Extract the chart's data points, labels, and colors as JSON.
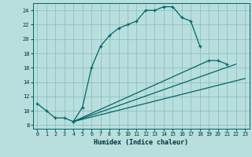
{
  "xlabel": "Humidex (Indice chaleur)",
  "background_color": "#b8dede",
  "grid_color": "#88bbbb",
  "line_color": "#006666",
  "xlim": [
    -0.5,
    23.5
  ],
  "ylim": [
    7.5,
    25
  ],
  "xticks": [
    0,
    1,
    2,
    3,
    4,
    5,
    6,
    7,
    8,
    9,
    10,
    11,
    12,
    13,
    14,
    15,
    16,
    17,
    18,
    19,
    20,
    21,
    22,
    23
  ],
  "yticks": [
    8,
    10,
    12,
    14,
    16,
    18,
    20,
    22,
    24
  ],
  "series": [
    {
      "x": [
        0,
        1,
        2,
        3,
        4,
        5,
        6,
        7,
        8,
        9,
        10,
        11,
        12,
        13,
        14,
        15,
        16,
        17,
        18
      ],
      "y": [
        11,
        10,
        9,
        9,
        8.5,
        10.5,
        16,
        19,
        20.5,
        21.5,
        22,
        22.5,
        24,
        24,
        24.5,
        24.5,
        23,
        22.5,
        19
      ],
      "has_markers": true
    },
    {
      "x": [
        4,
        19,
        20,
        21
      ],
      "y": [
        8.5,
        17,
        17,
        16.5
      ],
      "has_markers": true
    },
    {
      "x": [
        4,
        22
      ],
      "y": [
        8.5,
        16.5
      ],
      "has_markers": false
    },
    {
      "x": [
        4,
        23
      ],
      "y": [
        8.5,
        14.5
      ],
      "has_markers": false
    }
  ]
}
